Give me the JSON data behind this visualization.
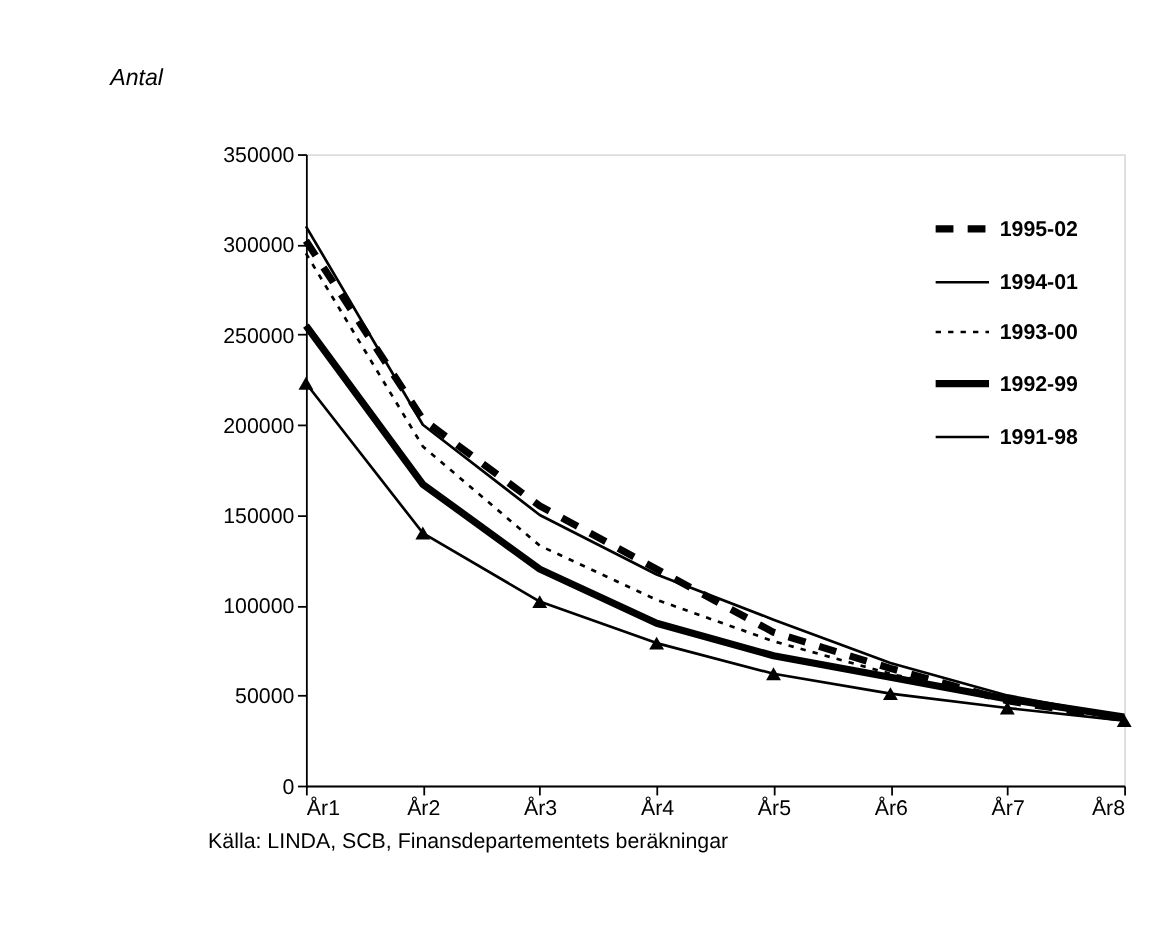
{
  "chart_data": {
    "type": "line",
    "title": "Antal",
    "categories": [
      "År1",
      "År2",
      "År3",
      "År4",
      "År5",
      "År6",
      "År7",
      "År8"
    ],
    "series": [
      {
        "name": "1995-02",
        "color": "#000000",
        "line_style": "dashed",
        "marker": "none",
        "values": [
          302000,
          203000,
          155000,
          120000,
          85000,
          65000,
          47000,
          37000
        ]
      },
      {
        "name": "1994-01",
        "color": "#000000",
        "line_style": "solid",
        "marker": "none",
        "values": [
          310000,
          200000,
          150000,
          117000,
          92000,
          68000,
          50000,
          38000
        ]
      },
      {
        "name": "1993-00",
        "color": "#000000",
        "line_style": "dotted",
        "marker": "none",
        "values": [
          295000,
          188000,
          133000,
          103000,
          80000,
          62000,
          47000,
          37000
        ]
      },
      {
        "name": "1992-99",
        "color": "#000000",
        "line_style": "solid",
        "marker": "none",
        "values": [
          255000,
          167000,
          120000,
          90000,
          72000,
          60000,
          48000,
          38000
        ]
      },
      {
        "name": "1991-98",
        "color": "#000000",
        "line_style": "solid",
        "marker": "triangle",
        "values": [
          223000,
          140000,
          102000,
          79000,
          62000,
          51000,
          43000,
          36000
        ]
      }
    ],
    "ylim": [
      0,
      350000
    ],
    "yticks": [
      0,
      50000,
      100000,
      150000,
      200000,
      250000,
      300000,
      350000
    ],
    "grid": false,
    "legend": "top right",
    "annotations": [
      "Källa: LINDA, SCB, Finansdepartementets beräkningar"
    ]
  }
}
